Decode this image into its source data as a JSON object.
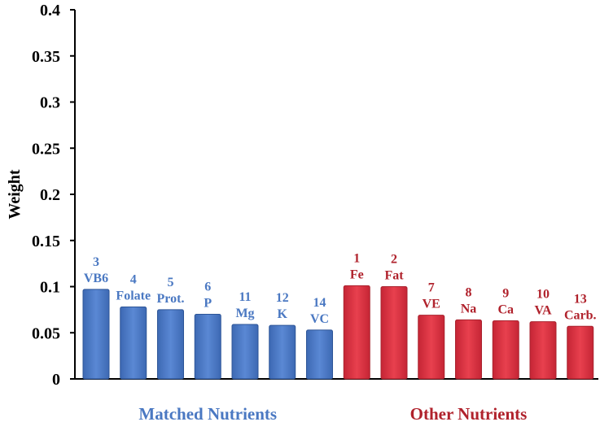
{
  "chart_data": {
    "type": "bar",
    "ylabel": "Weight",
    "ylim": [
      0,
      0.4
    ],
    "yticks": [
      "0",
      "0.05",
      "0.1",
      "0.15",
      "0.2",
      "0.25",
      "0.3",
      "0.35",
      "0.4"
    ],
    "grid": false,
    "colors": {
      "matched": "#4a78c2",
      "matched_dark": "#2d5597",
      "other": "#d8303f",
      "other_dark": "#a9232f",
      "matched_text": "#4a78c2",
      "other_text": "#b0222c"
    },
    "groups": [
      {
        "name": "Matched Nutrients",
        "bars": [
          {
            "id": "3",
            "label": "VB6",
            "value": 0.097
          },
          {
            "id": "4",
            "label": "Folate",
            "value": 0.078
          },
          {
            "id": "5",
            "label": "Prot.",
            "value": 0.075
          },
          {
            "id": "6",
            "label": "P",
            "value": 0.07
          },
          {
            "id": "11",
            "label": "Mg",
            "value": 0.059
          },
          {
            "id": "12",
            "label": "K",
            "value": 0.058
          },
          {
            "id": "14",
            "label": "VC",
            "value": 0.053
          }
        ]
      },
      {
        "name": "Other Nutrients",
        "bars": [
          {
            "id": "1",
            "label": "Fe",
            "value": 0.101
          },
          {
            "id": "2",
            "label": "Fat",
            "value": 0.1
          },
          {
            "id": "7",
            "label": "VE",
            "value": 0.069
          },
          {
            "id": "8",
            "label": "Na",
            "value": 0.064
          },
          {
            "id": "9",
            "label": "Ca",
            "value": 0.063
          },
          {
            "id": "10",
            "label": "VA",
            "value": 0.062
          },
          {
            "id": "13",
            "label": "Carb.",
            "value": 0.057
          }
        ]
      }
    ]
  }
}
